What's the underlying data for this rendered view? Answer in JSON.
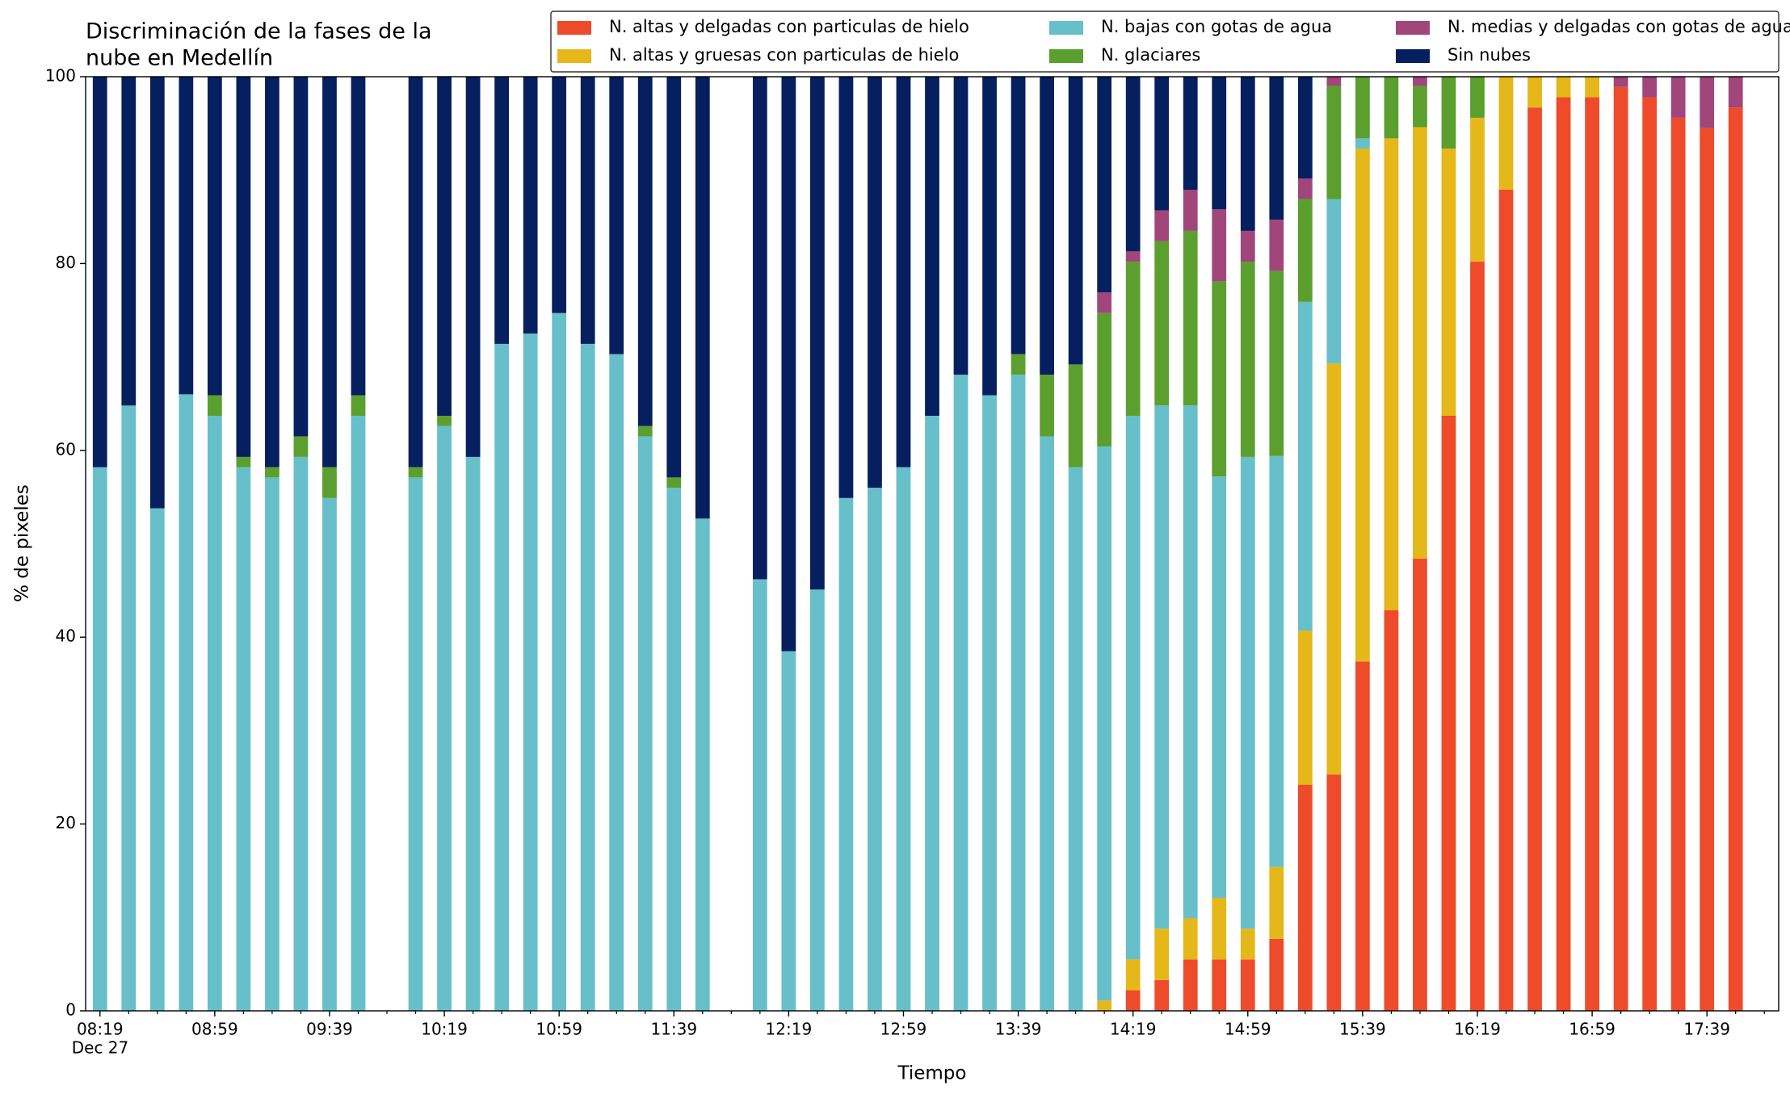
{
  "chart_data": {
    "type": "stacked_bar",
    "title": [
      "Discriminación de la fases de la",
      "nube en Medellín"
    ],
    "xlabel": "Tiempo",
    "ylabel": "% de pixeles",
    "x": [
      "08:19",
      "08:29",
      "08:39",
      "08:49",
      "08:59",
      "09:09",
      "09:19",
      "09:29",
      "09:39",
      "09:49",
      "10:09",
      "10:19",
      "10:29",
      "10:39",
      "10:49",
      "10:59",
      "11:09",
      "11:19",
      "11:29",
      "11:39",
      "11:49",
      "12:09",
      "12:19",
      "12:29",
      "12:39",
      "12:49",
      "12:59",
      "13:09",
      "13:19",
      "13:29",
      "13:39",
      "13:49",
      "13:59",
      "14:09",
      "14:19",
      "14:29",
      "14:39",
      "14:49",
      "14:59",
      "15:09",
      "15:19",
      "15:29",
      "15:39",
      "15:49",
      "15:59",
      "16:09",
      "16:19",
      "16:29",
      "16:39",
      "16:49",
      "16:59",
      "17:09",
      "17:19",
      "17:29",
      "17:39",
      "17:49"
    ],
    "xlim": [
      "08:14",
      "18:04"
    ],
    "xticks": [
      "08:19",
      "08:59",
      "09:39",
      "10:19",
      "10:59",
      "11:39",
      "12:19",
      "12:59",
      "13:39",
      "14:19",
      "14:59",
      "15:39",
      "16:19",
      "16:59",
      "17:39"
    ],
    "xtick_date": "Dec 27",
    "xminorticks": [
      "08:29",
      "08:39",
      "08:49",
      "09:09",
      "09:19",
      "09:29",
      "09:49",
      "09:59",
      "10:09",
      "10:29",
      "10:39",
      "10:49",
      "11:09",
      "11:19",
      "11:29",
      "11:49",
      "11:59",
      "12:09",
      "12:29",
      "12:39",
      "12:49",
      "13:09",
      "13:19",
      "13:29",
      "13:49",
      "13:59",
      "14:09",
      "14:29",
      "14:39",
      "14:49",
      "15:09",
      "15:19",
      "15:29",
      "15:49",
      "15:59",
      "16:09",
      "16:29",
      "16:39",
      "16:49",
      "17:09",
      "17:19",
      "17:29",
      "17:49",
      "17:59"
    ],
    "ylim": [
      0,
      100
    ],
    "yticks": [
      0,
      20,
      40,
      60,
      80,
      100
    ],
    "legend": "upper right",
    "series": [
      {
        "name": "N. altas y delgadas con particulas de hielo",
        "color": "#ee4b2b",
        "values": [
          0,
          0,
          0,
          0,
          0,
          0,
          0,
          0,
          0,
          0,
          0,
          0,
          0,
          0,
          0,
          0,
          0,
          0,
          0,
          0,
          0,
          0,
          0,
          0,
          0,
          0,
          0,
          0,
          0,
          0,
          0,
          0,
          0,
          0,
          2.2,
          3.3,
          5.5,
          5.5,
          5.5,
          7.7,
          24.2,
          25.3,
          37.4,
          42.9,
          48.4,
          63.7,
          80.2,
          87.9,
          96.7,
          97.8,
          97.8,
          98.9,
          97.8,
          95.6,
          94.5,
          96.7
        ]
      },
      {
        "name": "N. altas y gruesas con particulas de hielo",
        "color": "#e6b719",
        "values": [
          0,
          0,
          0,
          0,
          0,
          0,
          0,
          0,
          0,
          0,
          0,
          0,
          0,
          0,
          0,
          0,
          0,
          0,
          0,
          0,
          0,
          0,
          0,
          0,
          0,
          0,
          0,
          0,
          0,
          0,
          0,
          0,
          0,
          1.1,
          3.3,
          5.5,
          4.4,
          6.6,
          3.3,
          7.7,
          16.5,
          44,
          54.9,
          50.5,
          46.2,
          28.6,
          15.4,
          12.1,
          3.3,
          2.2,
          2.2,
          0,
          0,
          0,
          0,
          0
        ]
      },
      {
        "name": "N. bajas con gotas de agua",
        "color": "#67bfca",
        "values": [
          58.2,
          64.8,
          53.8,
          66,
          63.7,
          58.2,
          57.1,
          59.3,
          54.9,
          63.7,
          57.1,
          62.6,
          59.3,
          71.4,
          72.5,
          74.7,
          71.4,
          70.3,
          61.5,
          56,
          52.7,
          46.2,
          38.5,
          45.1,
          54.9,
          56,
          58.2,
          63.7,
          68.1,
          65.9,
          68.1,
          61.5,
          58.2,
          59.3,
          58.2,
          56,
          54.9,
          45.1,
          50.5,
          44,
          35.2,
          17.6,
          1.1,
          0,
          0,
          0,
          0,
          0,
          0,
          0,
          0,
          0,
          0,
          0,
          0,
          0
        ]
      },
      {
        "name": "N. glaciares",
        "color": "#5b9f2e",
        "values": [
          0,
          0,
          0,
          0,
          2.2,
          1.1,
          1.1,
          2.2,
          3.3,
          2.2,
          1.1,
          1.1,
          0,
          0,
          0,
          0,
          0,
          0,
          1.1,
          1.1,
          0,
          0,
          0,
          0,
          0,
          0,
          0,
          0,
          0,
          0,
          2.2,
          6.6,
          11,
          14.3,
          16.5,
          17.6,
          18.7,
          20.9,
          20.9,
          19.8,
          11,
          12.1,
          6.6,
          6.6,
          4.4,
          7.7,
          4.4,
          0,
          0,
          0,
          0,
          0,
          0,
          0,
          0,
          0
        ]
      },
      {
        "name": "N. medias y delgadas con gotas de agua",
        "color": "#a0467b",
        "values": [
          0,
          0,
          0,
          0,
          0,
          0,
          0,
          0,
          0,
          0,
          0,
          0,
          0,
          0,
          0,
          0,
          0,
          0,
          0,
          0,
          0,
          0,
          0,
          0,
          0,
          0,
          0,
          0,
          0,
          0,
          0,
          0,
          0,
          2.2,
          1.1,
          3.3,
          4.4,
          7.7,
          3.3,
          5.5,
          2.2,
          1,
          0,
          0,
          1,
          0,
          0,
          0,
          0,
          0,
          0,
          1.1,
          2.2,
          4.4,
          5.5,
          3.3
        ]
      },
      {
        "name": "Sin nubes",
        "color": "#061f5e",
        "values": [
          41.8,
          35.2,
          46.2,
          34,
          34.1,
          40.7,
          41.8,
          38.5,
          41.8,
          34.1,
          41.8,
          36.3,
          40.7,
          28.6,
          27.5,
          25.3,
          28.6,
          29.7,
          37.4,
          42.9,
          47.3,
          53.8,
          61.5,
          54.9,
          45.1,
          44,
          41.8,
          36.3,
          31.9,
          34.1,
          29.7,
          31.9,
          30.8,
          23.1,
          18.7,
          14.3,
          12.1,
          14.2,
          16.5,
          15.3,
          10.9,
          0,
          0,
          0,
          0,
          0,
          0,
          0,
          0,
          0,
          0,
          0,
          0,
          0,
          0,
          0
        ]
      }
    ]
  }
}
